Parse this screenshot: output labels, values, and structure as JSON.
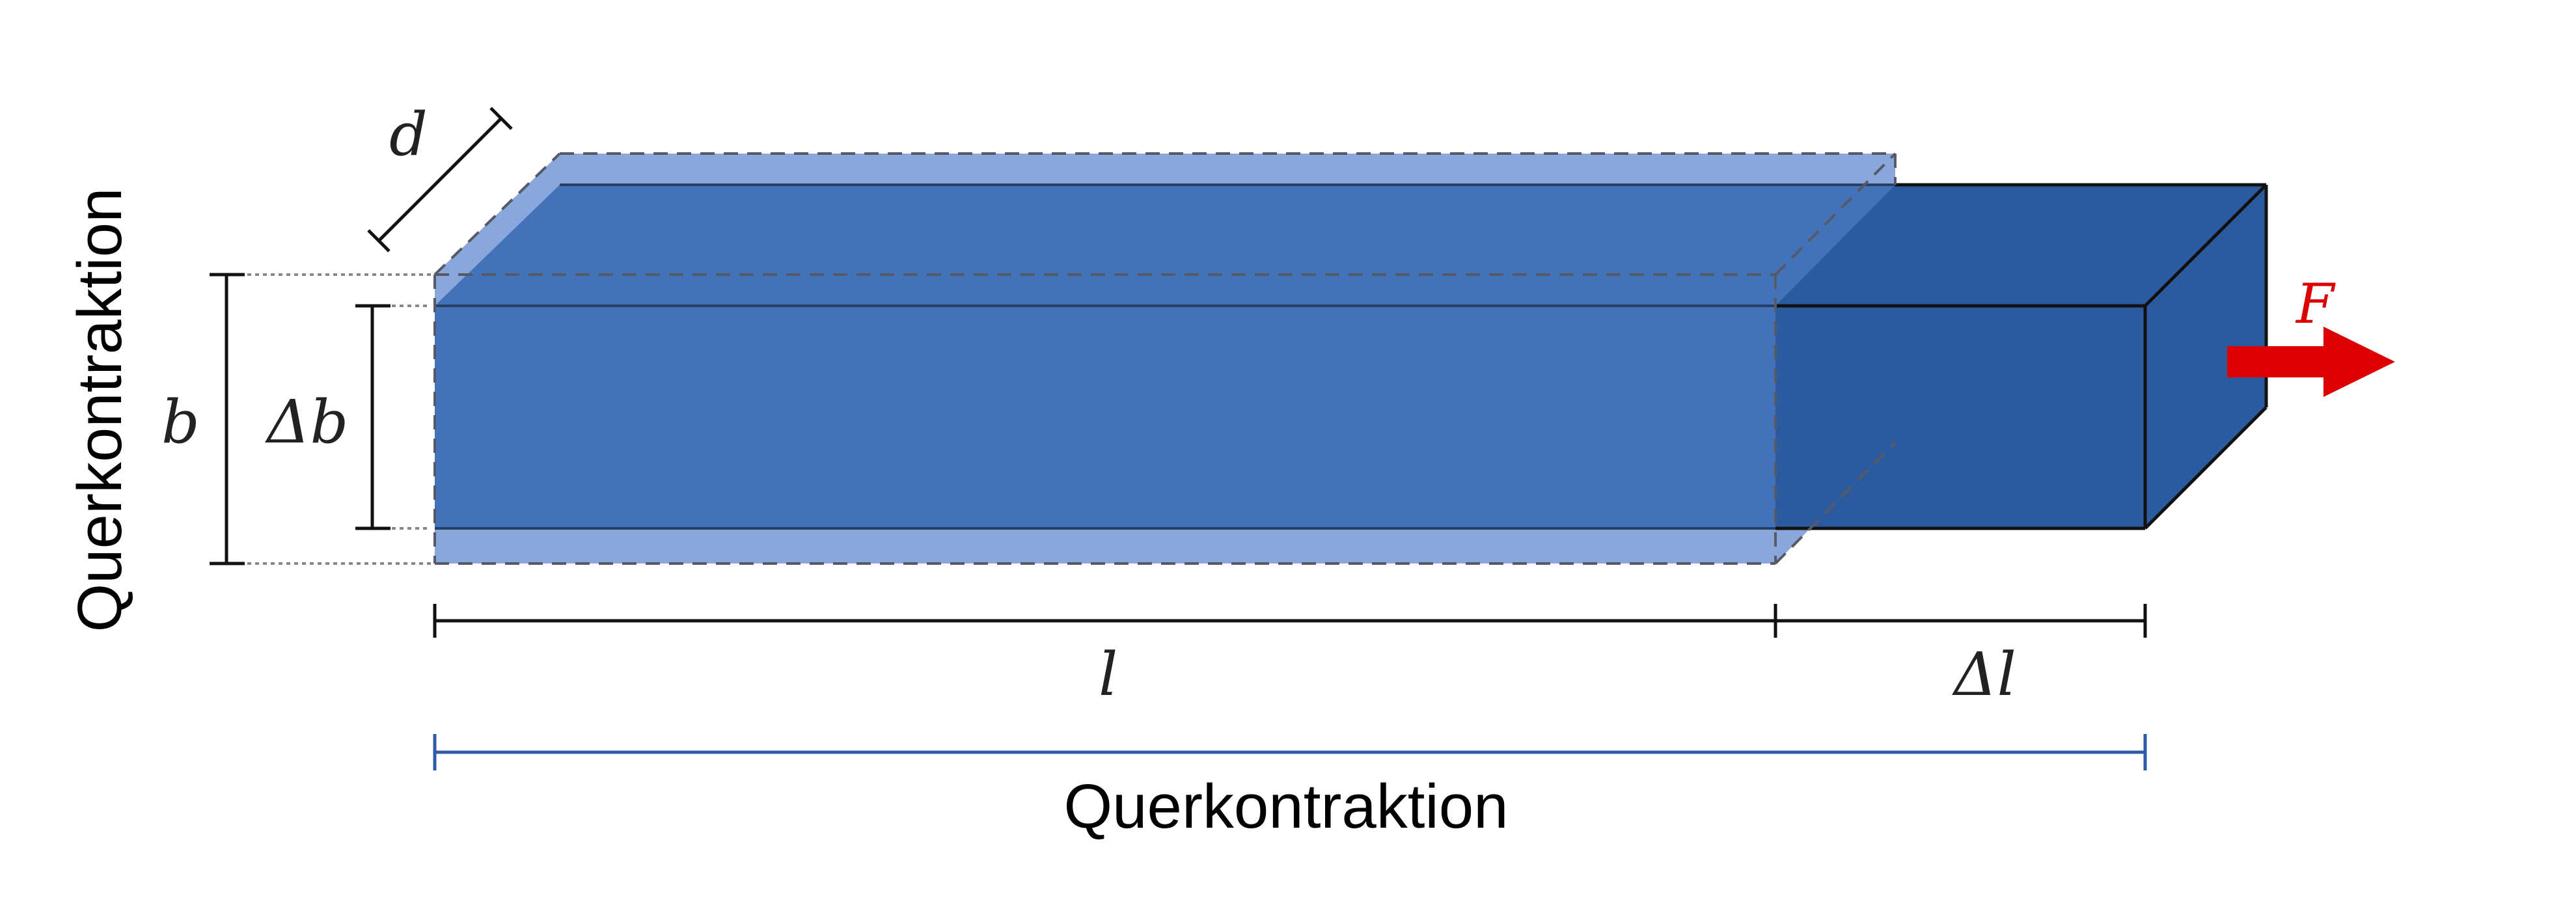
{
  "labels": {
    "depth": "d",
    "width": "b",
    "width_change": "Δb",
    "length": "l",
    "length_change": "Δl",
    "force": "F",
    "caption_bottom": "Querkontraktion",
    "caption_left": "Querkontraktion"
  },
  "colors": {
    "original_bar": "#8aa7dc",
    "overlap_bar": "#4472b8",
    "stretched_bar": "#2c5a9f",
    "force_arrow": "#dd0000",
    "bottom_dimension": "#2f5aa8",
    "dimension_lines": "#111111"
  }
}
